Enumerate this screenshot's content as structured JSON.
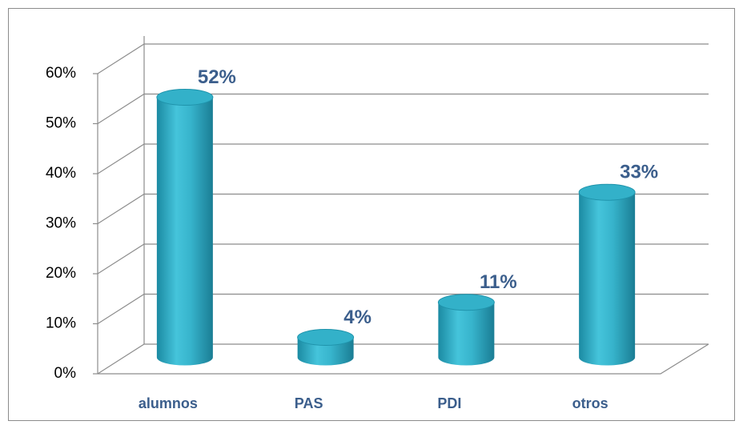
{
  "chart_data": {
    "type": "bar",
    "categories": [
      "alumnos",
      "PAS",
      "PDI",
      "otros"
    ],
    "values": [
      52,
      4,
      11,
      33
    ],
    "value_labels": [
      "52%",
      "4%",
      "11%",
      "33%"
    ],
    "color": "#33b1c9",
    "ylim": [
      0,
      60
    ],
    "yticks": [
      {
        "value": 0,
        "label": "0%"
      },
      {
        "value": 10,
        "label": "10%"
      },
      {
        "value": 20,
        "label": "20%"
      },
      {
        "value": 30,
        "label": "30%"
      },
      {
        "value": 40,
        "label": "40%"
      },
      {
        "value": 50,
        "label": "50%"
      },
      {
        "value": 60,
        "label": "60%"
      }
    ],
    "grid": true
  }
}
